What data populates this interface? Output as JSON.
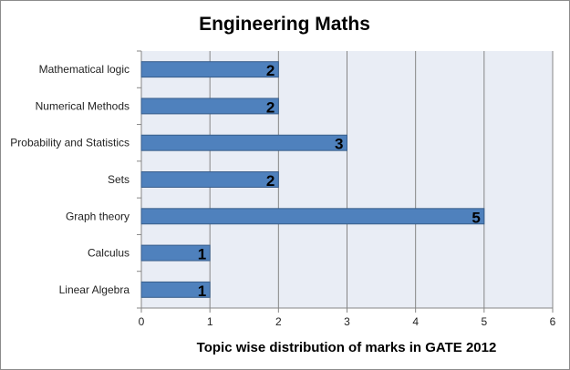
{
  "chart_data": {
    "type": "bar",
    "orientation": "horizontal",
    "title": "Engineering Maths",
    "xlabel": "Topic wise distribution of marks in GATE 2012",
    "ylabel": "",
    "categories": [
      "Mathematical logic",
      "Numerical Methods",
      "Probability and Statistics",
      "Sets",
      "Graph theory",
      "Calculus",
      "Linear Algebra"
    ],
    "values": [
      2,
      2,
      3,
      2,
      5,
      1,
      1
    ],
    "xlim": [
      0,
      6
    ],
    "xticks": [
      0,
      1,
      2,
      3,
      4,
      5,
      6
    ],
    "grid": true,
    "data_labels": true,
    "legend": "none",
    "colors": {
      "bar_fill": "#4f81bd",
      "bar_stroke": "#385d8a",
      "plot_background": "#e9edf5",
      "gridline": "#868686"
    }
  }
}
